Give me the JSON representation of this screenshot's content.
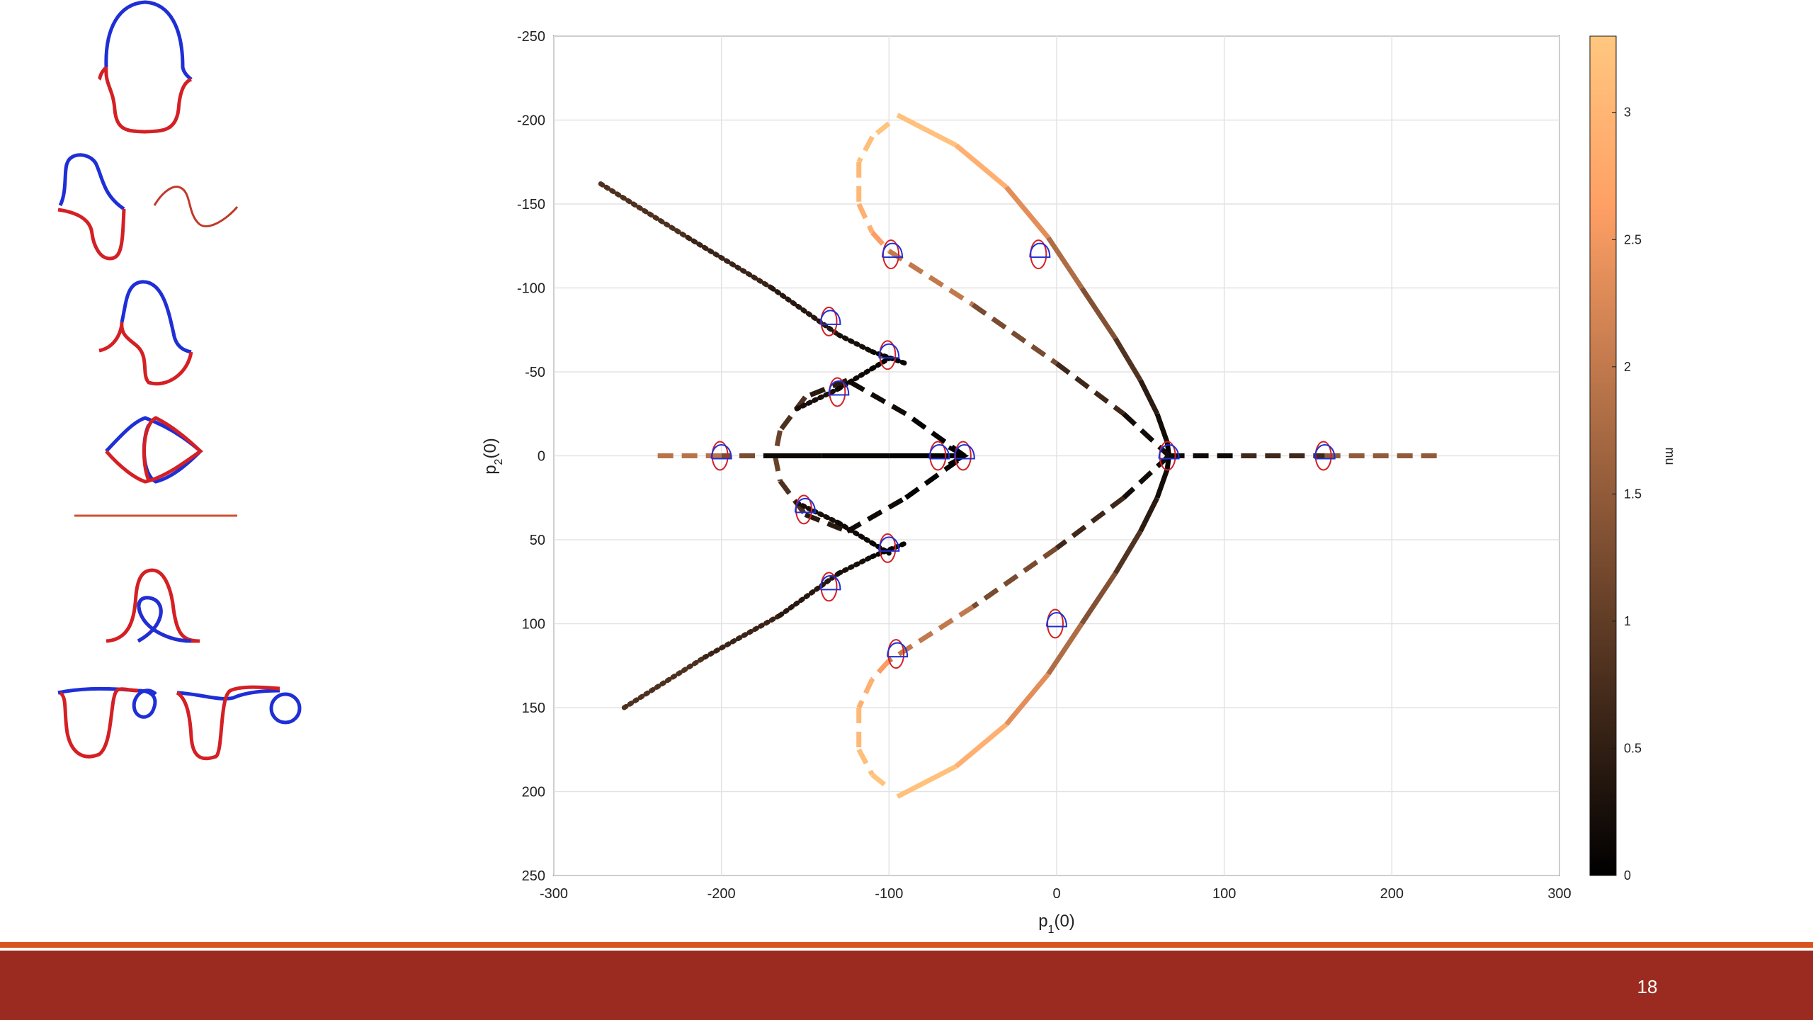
{
  "slide": {
    "page_number": "18",
    "colors": {
      "footer_bar": "#9b2b20",
      "footer_line": "#d9531e",
      "curve_red": "#d42024",
      "curve_blue": "#1f2fd6"
    }
  },
  "sidebar": {
    "icons": [
      "curve-shape-1-icon",
      "curve-shape-2-icon",
      "curve-shape-3-icon",
      "curve-shape-4-icon",
      "curve-shape-5-icon",
      "curve-shape-6-icon"
    ]
  },
  "chart_data": {
    "type": "line",
    "title": "",
    "xlabel": "p",
    "xlabel_sub": "1",
    "xlabel_suffix": "(0)",
    "ylabel": "p",
    "ylabel_sub": "2",
    "ylabel_suffix": "(0)",
    "xlim": [
      -300,
      300
    ],
    "ylim": [
      -250,
      250
    ],
    "y_reversed": true,
    "x_ticks": [
      "-300",
      "-200",
      "-100",
      "0",
      "100",
      "200",
      "300"
    ],
    "y_ticks": [
      "-250",
      "-200",
      "-150",
      "-100",
      "-50",
      "0",
      "50",
      "100",
      "150",
      "200",
      "250"
    ],
    "grid": true,
    "colorbar": {
      "label": "mu",
      "range": [
        0,
        3.3
      ],
      "ticks": [
        "0",
        "0.5",
        "1",
        "1.5",
        "2",
        "2.5",
        "3"
      ],
      "colormap": "copper"
    },
    "series": [
      {
        "style": "solid",
        "points": [
          [
            -95,
            -203,
            3.3
          ],
          [
            -60,
            -185,
            3.1
          ],
          [
            -30,
            -160,
            2.7
          ],
          [
            -5,
            -130,
            2.0
          ],
          [
            15,
            -100,
            1.6
          ],
          [
            35,
            -70,
            1.1
          ],
          [
            50,
            -45,
            0.6
          ],
          [
            60,
            -25,
            0.3
          ],
          [
            66,
            -8,
            0.1
          ],
          [
            67,
            0,
            0
          ]
        ]
      },
      {
        "style": "solid",
        "points": [
          [
            67,
            0,
            0
          ],
          [
            66,
            8,
            0.1
          ],
          [
            60,
            25,
            0.3
          ],
          [
            50,
            45,
            0.6
          ],
          [
            35,
            70,
            1.1
          ],
          [
            15,
            100,
            1.6
          ],
          [
            -5,
            130,
            2.0
          ],
          [
            -30,
            160,
            2.7
          ],
          [
            -60,
            185,
            3.1
          ],
          [
            -95,
            203,
            3.3
          ]
        ]
      },
      {
        "style": "dashed",
        "points": [
          [
            -100,
            -198,
            3.3
          ],
          [
            -110,
            -190,
            3.2
          ],
          [
            -118,
            -175,
            3.1
          ],
          [
            -118,
            -150,
            3.0
          ],
          [
            -110,
            -133,
            2.8
          ],
          [
            -100,
            -122,
            2.4
          ],
          [
            -50,
            -90,
            1.6
          ],
          [
            0,
            -55,
            0.9
          ],
          [
            40,
            -25,
            0.4
          ],
          [
            67,
            0,
            0
          ]
        ]
      },
      {
        "style": "dashed",
        "points": [
          [
            67,
            0,
            0
          ],
          [
            40,
            25,
            0.4
          ],
          [
            0,
            55,
            0.9
          ],
          [
            -50,
            90,
            1.6
          ],
          [
            -100,
            122,
            2.4
          ],
          [
            -110,
            133,
            2.8
          ],
          [
            -118,
            150,
            3.0
          ],
          [
            -118,
            175,
            3.1
          ],
          [
            -110,
            190,
            3.2
          ],
          [
            -100,
            198,
            3.3
          ]
        ]
      },
      {
        "style": "dashed",
        "points": [
          [
            67,
            0,
            0
          ],
          [
            110,
            0,
            0.3
          ],
          [
            160,
            0,
            1.0
          ],
          [
            230,
            0,
            2.0
          ]
        ]
      },
      {
        "style": "dashed",
        "points": [
          [
            -55,
            0,
            0
          ],
          [
            -90,
            -25,
            0.1
          ],
          [
            -125,
            -45,
            0.25
          ],
          [
            -150,
            -35,
            0.6
          ],
          [
            -165,
            -15,
            1.0
          ],
          [
            -168,
            0,
            1.2
          ],
          [
            -165,
            15,
            1.0
          ],
          [
            -150,
            35,
            0.6
          ],
          [
            -125,
            45,
            0.25
          ],
          [
            -90,
            25,
            0.1
          ],
          [
            -55,
            0,
            0
          ]
        ]
      },
      {
        "style": "dashed",
        "points": [
          [
            -180,
            0,
            1.0
          ],
          [
            -200,
            0,
            1.5
          ],
          [
            -240,
            0,
            2.3
          ]
        ]
      },
      {
        "style": "solid",
        "points": [
          [
            -175,
            0,
            0.15
          ],
          [
            -140,
            0,
            0.1
          ],
          [
            -100,
            0,
            0.05
          ],
          [
            -55,
            0,
            0
          ]
        ]
      },
      {
        "style": "dotted",
        "points": [
          [
            -272,
            -162,
            0.9
          ],
          [
            -220,
            -130,
            0.7
          ],
          [
            -170,
            -100,
            0.5
          ],
          [
            -130,
            -72,
            0.3
          ],
          [
            -110,
            -62,
            0.15
          ],
          [
            -90,
            -55,
            0.05
          ]
        ]
      },
      {
        "style": "dotted",
        "points": [
          [
            -258,
            150,
            0.9
          ],
          [
            -210,
            120,
            0.7
          ],
          [
            -165,
            95,
            0.5
          ],
          [
            -130,
            70,
            0.3
          ],
          [
            -110,
            60,
            0.15
          ],
          [
            -90,
            52,
            0.05
          ]
        ]
      },
      {
        "style": "dotted",
        "points": [
          [
            -155,
            -28,
            0.3
          ],
          [
            -130,
            -40,
            0.2
          ],
          [
            -110,
            -52,
            0.1
          ],
          [
            -100,
            -58,
            0.05
          ]
        ]
      },
      {
        "style": "dotted",
        "points": [
          [
            -155,
            28,
            0.3
          ],
          [
            -130,
            40,
            0.2
          ],
          [
            -110,
            52,
            0.1
          ],
          [
            -100,
            58,
            0.05
          ]
        ]
      }
    ],
    "markers": [
      [
        -200,
        0
      ],
      [
        -70,
        0
      ],
      [
        -55,
        0
      ],
      [
        67,
        0
      ],
      [
        160,
        0
      ],
      [
        -135,
        -80
      ],
      [
        -100,
        -60
      ],
      [
        -130,
        -38
      ],
      [
        -98,
        -120
      ],
      [
        -10,
        -120
      ],
      [
        -135,
        78
      ],
      [
        -100,
        55
      ],
      [
        -150,
        32
      ],
      [
        -95,
        118
      ],
      [
        0,
        100
      ]
    ]
  }
}
